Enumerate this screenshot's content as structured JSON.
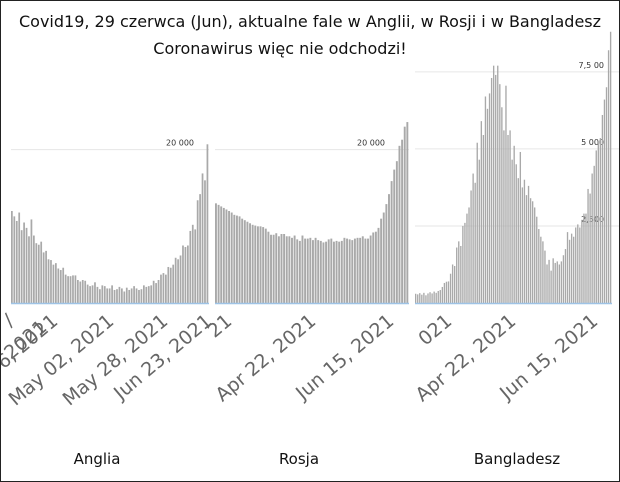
{
  "title": "Covid19, 29 czerwca (Jun), aktualne fale w Anglii, w Rosji  i w Bangladesz",
  "subtitle": "Coronawirus więc  nie odchodzi!",
  "colors": {
    "bars": "#a9a9a9",
    "baseline": "#9ec3e6",
    "reference": "#e6e6e6",
    "tick": "#666666"
  },
  "chart_data": [
    {
      "type": "bar",
      "name": "Anglia",
      "title": "Anglia",
      "x_ticks": [
        "r 06, 2021",
        "May 02, 2021",
        "May 28, 2021",
        "Jun 23, 2021"
      ],
      "x_tick_fragments": [
        "/",
        "2021"
      ],
      "reference_line": {
        "value": 20000,
        "label": "20 000"
      },
      "ylim": [
        0,
        27000
      ],
      "values": [
        12000,
        11300,
        10700,
        11800,
        9500,
        10500,
        9800,
        8700,
        10900,
        8800,
        7800,
        7600,
        8000,
        6600,
        6800,
        5700,
        5600,
        5000,
        5200,
        4500,
        4300,
        4600,
        3700,
        3500,
        3500,
        3600,
        3600,
        3000,
        2800,
        3000,
        2900,
        2400,
        2200,
        2300,
        2700,
        2100,
        1800,
        2300,
        2200,
        1900,
        1900,
        2300,
        1700,
        1800,
        2100,
        1900,
        1500,
        2000,
        1700,
        1900,
        2200,
        1900,
        1700,
        1800,
        2300,
        2100,
        2200,
        2300,
        2900,
        2600,
        3000,
        3700,
        3900,
        3700,
        4700,
        4600,
        5000,
        5900,
        5700,
        6200,
        7500,
        7300,
        7500,
        9400,
        10200,
        9600,
        13400,
        14200,
        16900,
        16000,
        20700
      ]
    },
    {
      "type": "bar",
      "name": "Rosja",
      "title": "Rosja",
      "x_ticks": [
        "21",
        "Apr 22, 2021",
        "Jun 15, 2021"
      ],
      "reference_line": {
        "value": 20000,
        "label": "20 000"
      },
      "ylim": [
        0,
        27000
      ],
      "values": [
        13000,
        12800,
        12600,
        12400,
        12200,
        12000,
        11800,
        11500,
        11400,
        11300,
        11000,
        10800,
        10600,
        10400,
        10200,
        10100,
        10000,
        10000,
        9900,
        9700,
        9300,
        8900,
        8900,
        9100,
        8700,
        9000,
        9000,
        8700,
        8700,
        8500,
        8800,
        8300,
        8100,
        8800,
        8400,
        8400,
        8500,
        8200,
        8500,
        8200,
        8100,
        7900,
        8000,
        8300,
        8400,
        8000,
        8100,
        8000,
        8100,
        8500,
        8400,
        8300,
        8200,
        8400,
        8500,
        8500,
        8700,
        8400,
        8400,
        8800,
        9200,
        9300,
        9800,
        11000,
        11800,
        12900,
        14200,
        15900,
        17400,
        18500,
        20500,
        21300,
        23000,
        23600
      ]
    },
    {
      "type": "bar",
      "name": "Bangladesz",
      "title": "Bangladesz",
      "x_ticks": [
        "021",
        "Apr 22, 2021",
        "Jun 15, 2021"
      ],
      "y_ticks": [
        {
          "value": 2500,
          "label": "2,500"
        },
        {
          "value": 5000,
          "label": "5 000"
        },
        {
          "value": 7500,
          "label": "7,5 00"
        }
      ],
      "ylim": [
        0,
        8500
      ],
      "values": [
        300,
        280,
        320,
        270,
        330,
        250,
        310,
        350,
        310,
        370,
        330,
        390,
        420,
        520,
        650,
        690,
        700,
        950,
        1250,
        1200,
        1800,
        2000,
        1850,
        2500,
        2600,
        2900,
        3100,
        3650,
        4200,
        3900,
        5200,
        4650,
        5900,
        5450,
        6700,
        6300,
        6800,
        7300,
        7700,
        7400,
        7700,
        7100,
        6350,
        5600,
        7050,
        5450,
        5600,
        4650,
        5100,
        4500,
        4050,
        4900,
        3750,
        4000,
        3500,
        3800,
        3400,
        3300,
        3100,
        2800,
        2400,
        2150,
        2000,
        1700,
        1250,
        1400,
        1050,
        1450,
        1300,
        1350,
        1250,
        1350,
        1550,
        1750,
        2300,
        2050,
        2250,
        2150,
        2450,
        2550,
        2450,
        2700,
        2900,
        2900,
        3700,
        3550,
        4200,
        4450,
        4950,
        5200,
        5350,
        6100,
        6600,
        7000,
        8200,
        8800
      ]
    }
  ]
}
